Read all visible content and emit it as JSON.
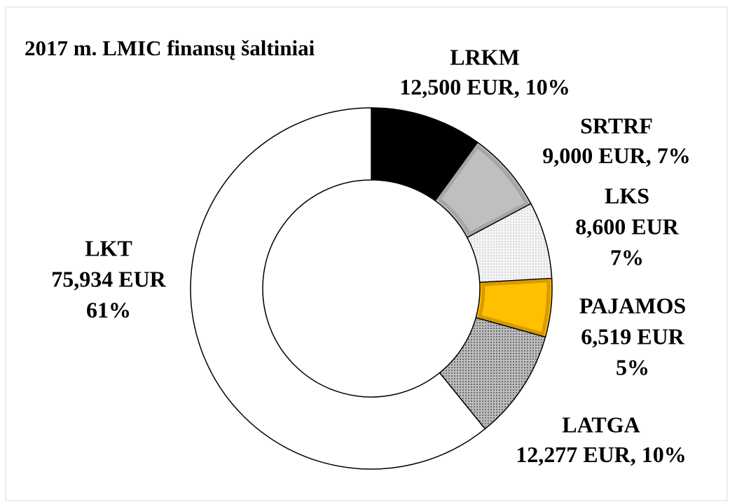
{
  "chart_data": {
    "type": "donut",
    "title": "2017 m. LMIC finansų šaltiniai",
    "categories": [
      "LRKM",
      "SRTRF",
      "LKS",
      "PAJAMOS",
      "LATGA",
      "LKT"
    ],
    "values": [
      12500,
      9000,
      8600,
      6519,
      12277,
      75934
    ],
    "value_labels": [
      "12,500 EUR,",
      "9,000 EUR,",
      "8,600 EUR",
      "6,519 EUR",
      "12,277 EUR,",
      "75,934 EUR"
    ],
    "percent_labels": [
      "10%",
      "7%",
      "7%",
      "5%",
      "10%",
      "61%"
    ],
    "colors": [
      "#000000",
      "#bfbfbf",
      "#ececec",
      "#ffc000",
      "#a6a6a6",
      "#ffffff"
    ]
  }
}
